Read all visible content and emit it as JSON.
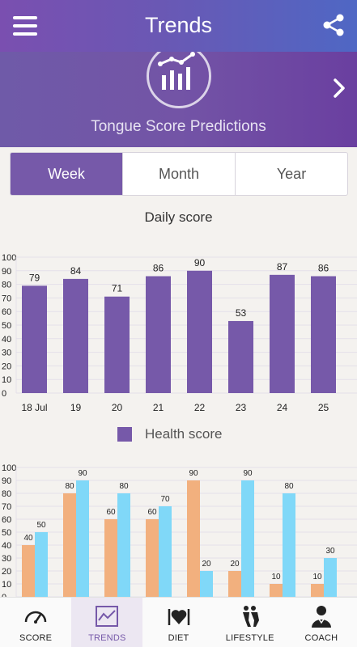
{
  "appbar": {
    "title": "Trends"
  },
  "banner": {
    "label": "Tongue Score Predictions"
  },
  "segment": {
    "tabs": [
      "Week",
      "Month",
      "Year"
    ],
    "active": "Week"
  },
  "daily_chart": {
    "title": "Daily score",
    "legend_label": "Health score"
  },
  "chart_data": [
    {
      "type": "bar",
      "title": "Daily score",
      "categories": [
        "18 Jul",
        "19",
        "20",
        "21",
        "22",
        "23",
        "24",
        "25"
      ],
      "series": [
        {
          "name": "Health score",
          "values": [
            79,
            84,
            71,
            86,
            90,
            53,
            87,
            86
          ],
          "color": "#7659a9"
        }
      ],
      "ylim": [
        0,
        100
      ],
      "yticks": [
        0,
        10,
        20,
        30,
        40,
        50,
        60,
        70,
        80,
        90,
        100
      ],
      "grid": true,
      "legend": "bottom"
    },
    {
      "type": "bar",
      "categories": [
        "",
        "",
        "",
        "",
        "",
        "",
        "",
        ""
      ],
      "series": [
        {
          "values": [
            40,
            80,
            60,
            60,
            90,
            20,
            10,
            10
          ],
          "color": "#f2b07e"
        },
        {
          "values": [
            50,
            90,
            80,
            70,
            20,
            90,
            80,
            30
          ],
          "color": "#80d8f8"
        }
      ],
      "ylim": [
        0,
        100
      ],
      "yticks": [
        0,
        10,
        20,
        30,
        40,
        50,
        60,
        70,
        80,
        90,
        100
      ],
      "grid": true
    }
  ],
  "bottom_nav": [
    {
      "label": "SCORE",
      "icon": "gauge-icon"
    },
    {
      "label": "TRENDS",
      "icon": "trend-chart-icon",
      "active": true
    },
    {
      "label": "DIET",
      "icon": "heart-cutlery-icon"
    },
    {
      "label": "LIFESTYLE",
      "icon": "lifestyle-figures-icon"
    },
    {
      "label": "COACH",
      "icon": "coach-person-icon"
    }
  ],
  "colors": {
    "primary": "#7659a9",
    "orange": "#f2b07e",
    "blue": "#80d8f8",
    "background": "#f4f2ef"
  }
}
